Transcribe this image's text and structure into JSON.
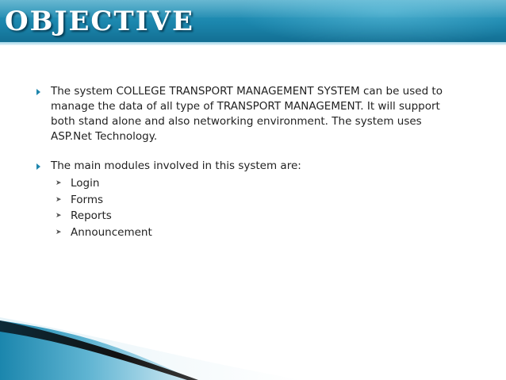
{
  "slide": {
    "title": "OBJECTIVE",
    "bullets": [
      {
        "text": "The system COLLEGE TRANSPORT MANAGEMENT SYSTEM can be used to manage the data of all type of TRANSPORT MANAGEMENT. It will support both stand alone and also networking environment. The system uses ASP.Net Technology."
      },
      {
        "text": "The main modules involved in this system are:",
        "sub_items": [
          "Login",
          "Forms",
          "Reports",
          "Announcement"
        ]
      }
    ]
  },
  "icons": {
    "bullet": "triangle-right-icon",
    "sub_bullet": "chevron-right-icon"
  },
  "colors": {
    "header_top": "#2e9cc0",
    "header_bottom": "#136f93",
    "accent": "#1f86ad",
    "text": "#222222"
  }
}
